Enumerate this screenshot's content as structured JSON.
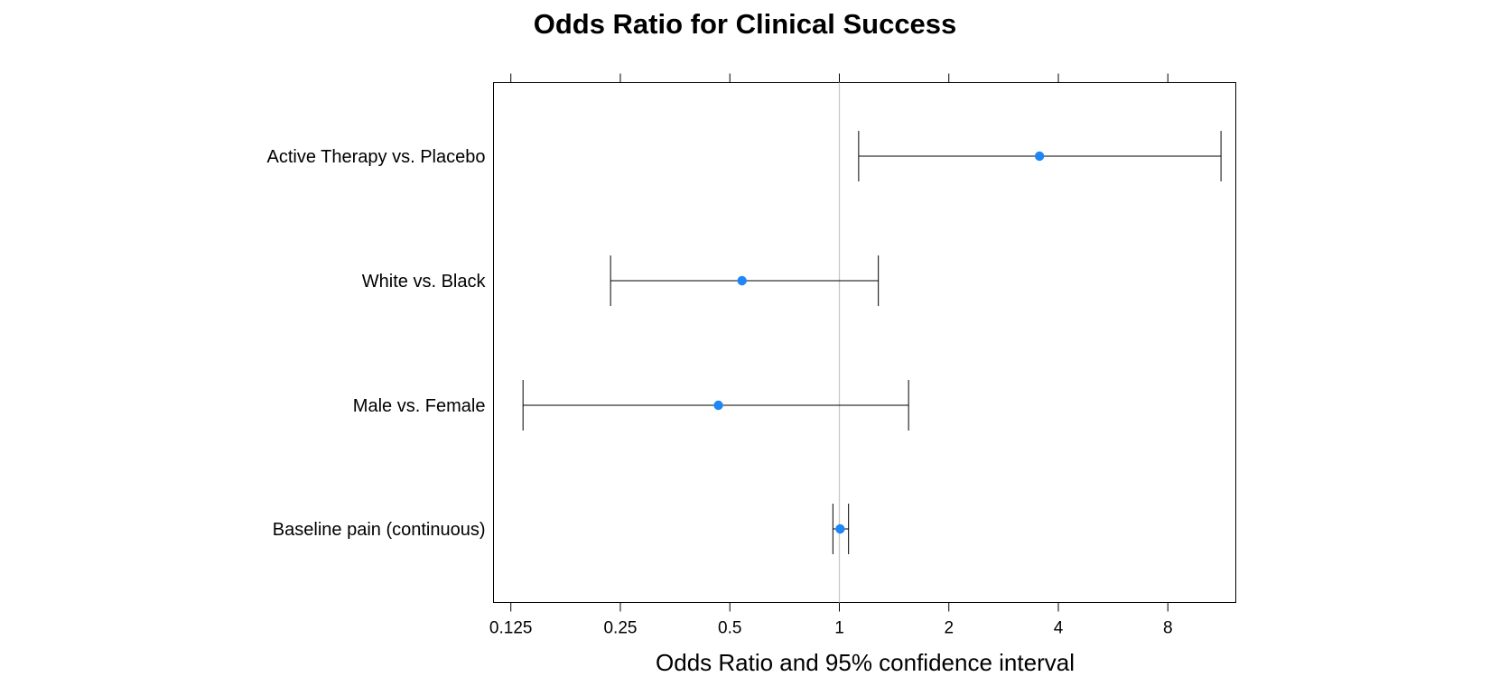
{
  "chart_data": {
    "type": "forest",
    "title": "Odds Ratio for Clinical Success",
    "xlabel": "Odds Ratio and 95% confidence interval",
    "ylabel": "",
    "x_scale": "log2",
    "xlim": [
      0.112,
      12.3
    ],
    "reference_line": 1,
    "ticks": [
      0.125,
      0.25,
      0.5,
      1,
      2,
      4,
      8
    ],
    "tick_labels": [
      "0.125",
      "0.25",
      "0.5",
      "1",
      "2",
      "4",
      "8"
    ],
    "point_color": "#1E86F6",
    "reference_line_color": "#c8c8c8",
    "categories": [
      {
        "label": "Active Therapy vs. Placebo",
        "estimate": 3.55,
        "lower": 1.13,
        "upper": 11.2
      },
      {
        "label": "White vs. Black",
        "estimate": 0.54,
        "lower": 0.235,
        "upper": 1.28
      },
      {
        "label": "Male vs. Female",
        "estimate": 0.465,
        "lower": 0.135,
        "upper": 1.55
      },
      {
        "label": "Baseline pain (continuous)",
        "estimate": 1.005,
        "lower": 0.96,
        "upper": 1.06
      }
    ]
  }
}
